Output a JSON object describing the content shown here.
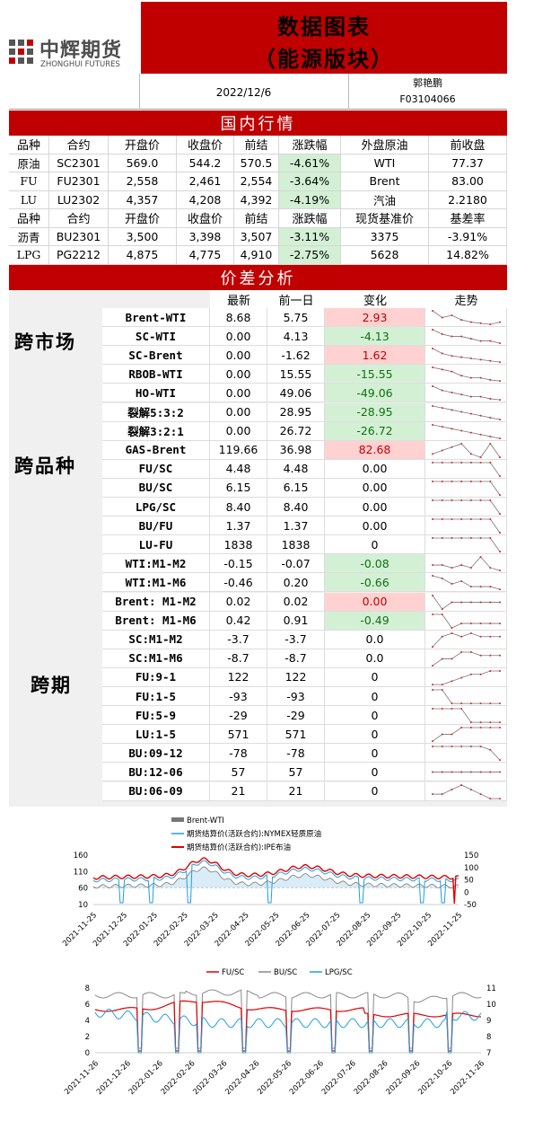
{
  "header": {
    "logo_cn": "中辉期货",
    "logo_en": "ZHONGHUI FUTURES",
    "title_line1": "数据图表",
    "title_line2": "（能源版块）",
    "date": "2022/12/6",
    "analyst": "郭艳鹏",
    "license": "F03104066"
  },
  "domestic": {
    "title": "国内行情",
    "headers1": [
      "品种",
      "合约",
      "开盘价",
      "收盘价",
      "前结",
      "涨跌幅",
      "外盘原油",
      "前收盘"
    ],
    "rows1": [
      [
        "原油",
        "SC2301",
        "569.0",
        "544.2",
        "570.5",
        "-4.61%",
        "WTI",
        "77.37"
      ],
      [
        "FU",
        "FU2301",
        "2,558",
        "2,461",
        "2,554",
        "-3.64%",
        "Brent",
        "83.00"
      ],
      [
        "LU",
        "LU2302",
        "4,357",
        "4,208",
        "4,392",
        "-4.19%",
        "汽油",
        "2.2180"
      ]
    ],
    "headers2": [
      "品种",
      "合约",
      "开盘价",
      "收盘价",
      "前结",
      "涨跌幅",
      "现货基准价",
      "基差率"
    ],
    "rows2": [
      [
        "沥青",
        "BU2301",
        "3,500",
        "3,398",
        "3,507",
        "-3.11%",
        "3375",
        "-3.91%"
      ],
      [
        "LPG",
        "PG2212",
        "4,875",
        "4,775",
        "4,910",
        "-2.75%",
        "5628",
        "14.82%"
      ]
    ]
  },
  "spread": {
    "title": "价差分析",
    "headers": [
      "最新",
      "前一日",
      "变化",
      "走势"
    ],
    "groups": [
      "跨市场",
      "跨品种",
      "跨期"
    ],
    "rows": [
      {
        "name": "Brent-WTI",
        "latest": "8.68",
        "prev": "5.75",
        "change": "2.93",
        "sign": "pos"
      },
      {
        "name": "SC-WTI",
        "latest": "0.00",
        "prev": "4.13",
        "change": "-4.13",
        "sign": "neg"
      },
      {
        "name": "SC-Brent",
        "latest": "0.00",
        "prev": "-1.62",
        "change": "1.62",
        "sign": "pos"
      },
      {
        "name": "RBOB-WTI",
        "latest": "0.00",
        "prev": "15.55",
        "change": "-15.55",
        "sign": "neg"
      },
      {
        "name": "HO-WTI",
        "latest": "0.00",
        "prev": "49.06",
        "change": "-49.06",
        "sign": "neg"
      },
      {
        "name": "裂解5:3:2",
        "latest": "0.00",
        "prev": "28.95",
        "change": "-28.95",
        "sign": "neg"
      },
      {
        "name": "裂解3:2:1",
        "latest": "0.00",
        "prev": "26.72",
        "change": "-26.72",
        "sign": "neg"
      },
      {
        "name": "GAS-Brent",
        "latest": "119.66",
        "prev": "36.98",
        "change": "82.68",
        "sign": "pos"
      },
      {
        "name": "FU/SC",
        "latest": "4.48",
        "prev": "4.48",
        "change": "0.00",
        "sign": ""
      },
      {
        "name": "BU/SC",
        "latest": "6.15",
        "prev": "6.15",
        "change": "0.00",
        "sign": ""
      },
      {
        "name": "LPG/SC",
        "latest": "8.40",
        "prev": "8.40",
        "change": "0.00",
        "sign": ""
      },
      {
        "name": "BU/FU",
        "latest": "1.37",
        "prev": "1.37",
        "change": "0.00",
        "sign": ""
      },
      {
        "name": "LU-FU",
        "latest": "1838",
        "prev": "1838",
        "change": "0",
        "sign": ""
      },
      {
        "name": "WTI:M1-M2",
        "latest": "-0.15",
        "prev": "-0.07",
        "change": "-0.08",
        "sign": "neg"
      },
      {
        "name": "WTI:M1-M6",
        "latest": "-0.46",
        "prev": "0.20",
        "change": "-0.66",
        "sign": "neg"
      },
      {
        "name": "Brent: M1-M2",
        "latest": "0.02",
        "prev": "0.02",
        "change": "0.00",
        "sign": "pos"
      },
      {
        "name": "Brent: M1-M6",
        "latest": "0.42",
        "prev": "0.91",
        "change": "-0.49",
        "sign": "neg"
      },
      {
        "name": "SC:M1-M2",
        "latest": "-3.7",
        "prev": "-3.7",
        "change": "0.0",
        "sign": ""
      },
      {
        "name": "SC:M1-M6",
        "latest": "-8.7",
        "prev": "-8.7",
        "change": "0.0",
        "sign": ""
      },
      {
        "name": "FU:9-1",
        "latest": "122",
        "prev": "122",
        "change": "0",
        "sign": ""
      },
      {
        "name": "FU:1-5",
        "latest": "-93",
        "prev": "-93",
        "change": "0",
        "sign": ""
      },
      {
        "name": "FU:5-9",
        "latest": "-29",
        "prev": "-29",
        "change": "0",
        "sign": ""
      },
      {
        "name": "LU:1-5",
        "latest": "571",
        "prev": "571",
        "change": "0",
        "sign": ""
      },
      {
        "name": "BU:09-12",
        "latest": "-78",
        "prev": "-78",
        "change": "0",
        "sign": ""
      },
      {
        "name": "BU:12-06",
        "latest": "57",
        "prev": "57",
        "change": "0",
        "sign": ""
      },
      {
        "name": "BU:06-09",
        "latest": "21",
        "prev": "21",
        "change": "0",
        "sign": ""
      }
    ],
    "sparks": [
      [
        8,
        5,
        6,
        4,
        3,
        2.5,
        2,
        3
      ],
      [
        8,
        6,
        5,
        5,
        4,
        3,
        3,
        2
      ],
      [
        8,
        6,
        5,
        4.5,
        4,
        3.5,
        3,
        2.5
      ],
      [
        8,
        7,
        6,
        4,
        3,
        3,
        2,
        1.5
      ],
      [
        8,
        6,
        5,
        4,
        3,
        3,
        2,
        1.5
      ],
      [
        8,
        7,
        6,
        5,
        4,
        3,
        2,
        1
      ],
      [
        8,
        7,
        6,
        5,
        4,
        3,
        2,
        1
      ],
      [
        3,
        4,
        5,
        6,
        3,
        2,
        6,
        2
      ],
      [
        5,
        5,
        5,
        5,
        5,
        5,
        5,
        1
      ],
      [
        5,
        5,
        5,
        5,
        5,
        5,
        5,
        1
      ],
      [
        5,
        5,
        5,
        5,
        5,
        5,
        5,
        1
      ],
      [
        5,
        5,
        5,
        5,
        5,
        5,
        5,
        1
      ],
      [
        5,
        5,
        5,
        5,
        5,
        5,
        5,
        1
      ],
      [
        3,
        3,
        2,
        3,
        2,
        6,
        2,
        1
      ],
      [
        7,
        6,
        4,
        5,
        3,
        3,
        3,
        2
      ],
      [
        7,
        5,
        6,
        6,
        6,
        6,
        6,
        6
      ],
      [
        7,
        7,
        4,
        5,
        5,
        5,
        5,
        5
      ],
      [
        3,
        6,
        7,
        6,
        7,
        6,
        6,
        6
      ],
      [
        2,
        4,
        4,
        6,
        6,
        5,
        5,
        5
      ],
      [
        3,
        3,
        4,
        5,
        6,
        6,
        7,
        7
      ],
      [
        5,
        5,
        3,
        3,
        3,
        3,
        3,
        3
      ],
      [
        5,
        5,
        5,
        5,
        3,
        3,
        3,
        3
      ],
      [
        4,
        5,
        5,
        6,
        6,
        6,
        6,
        6
      ],
      [
        5,
        5,
        5,
        5,
        5,
        5,
        4,
        1
      ],
      [
        3,
        3,
        3,
        3,
        3,
        3,
        3,
        3
      ],
      [
        3,
        3,
        4,
        5,
        4,
        3,
        2,
        2
      ]
    ]
  },
  "chart1": {
    "legend": [
      "Brent-WTI",
      "期货结算价(活跃合约):NYMEX轻质原油",
      "期货结算价(活跃合约):IPE布油"
    ],
    "yleft": [
      "160",
      "110",
      "60",
      "10"
    ],
    "yright": [
      "150",
      "100",
      "50",
      "0",
      "-50"
    ],
    "xticks": [
      "2021-11-25",
      "2021-12-25",
      "2022-01-25",
      "2022-02-25",
      "2022-03-25",
      "2022-04-25",
      "2022-05-25",
      "2022-06-25",
      "2022-07-25",
      "2022-08-25",
      "2022-09-25",
      "2022-10-25",
      "2022-11-25"
    ]
  },
  "chart2": {
    "legend": [
      "FU/SC",
      "BU/SC",
      "LPG/SC"
    ],
    "yleft": [
      "8",
      "6",
      "4",
      "2",
      "0"
    ],
    "yright": [
      "11",
      "10",
      "9",
      "8",
      "7"
    ],
    "xticks": [
      "2021-11-26",
      "2021-12-26",
      "2022-01-26",
      "2022-02-26",
      "2022-03-26",
      "2022-04-26",
      "2022-05-26",
      "2022-06-26",
      "2022-07-26",
      "2022-08-26",
      "2022-09-26",
      "2022-10-26",
      "2022-11-26"
    ]
  },
  "colors": {
    "brand_red": "#c00000",
    "pos_bg": "#ffd1d1",
    "neg_bg": "#d3f0d5"
  }
}
